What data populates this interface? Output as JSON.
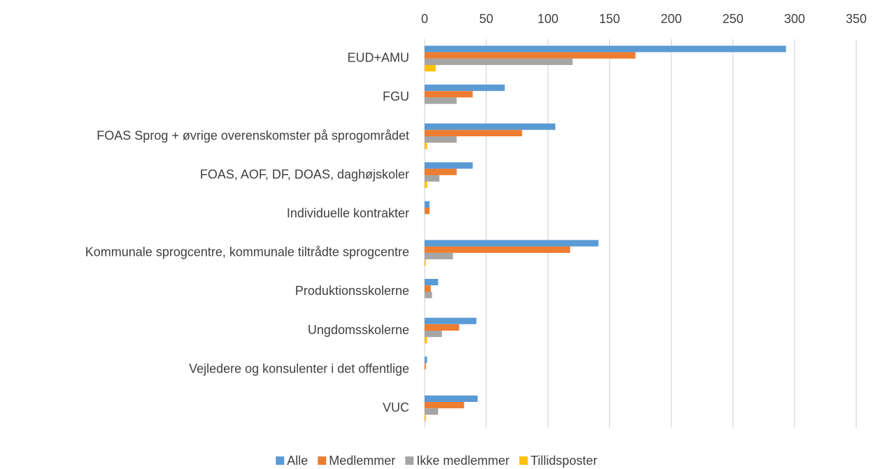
{
  "chart_data": {
    "type": "hbar",
    "categories": [
      "EUD+AMU",
      "FGU",
      "FOAS Sprog + øvrige overenskomster på sprogområdet",
      "FOAS, AOF, DF, DOAS, daghøjskoler",
      "Individuelle kontrakter",
      "Kommunale sprogcentre, kommunale tiltrådte sprogcentre",
      "Produktionsskolerne",
      "Ungdomsskolerne",
      "Vejledere og konsulenter i det offentlige",
      "VUC"
    ],
    "series": [
      {
        "name": "Alle",
        "color": "#5b9bd5",
        "values": [
          293,
          65,
          106,
          39,
          4,
          141,
          11,
          42,
          2,
          43
        ]
      },
      {
        "name": "Medlemmer",
        "color": "#ed7d31",
        "values": [
          171,
          39,
          79,
          26,
          4,
          118,
          5,
          28,
          1,
          32
        ]
      },
      {
        "name": "Ikke medlemmer",
        "color": "#a5a5a5",
        "values": [
          120,
          26,
          26,
          12,
          0,
          23,
          6,
          14,
          0,
          11
        ]
      },
      {
        "name": "Tillidsposter",
        "color": "#ffc000",
        "values": [
          9,
          0,
          2,
          2,
          0,
          1,
          0,
          2,
          0,
          1
        ]
      }
    ],
    "xlim": [
      0,
      350
    ],
    "xticks": [
      0,
      50,
      100,
      150,
      200,
      250,
      300,
      350
    ],
    "grid": true,
    "legend": "bottom"
  }
}
